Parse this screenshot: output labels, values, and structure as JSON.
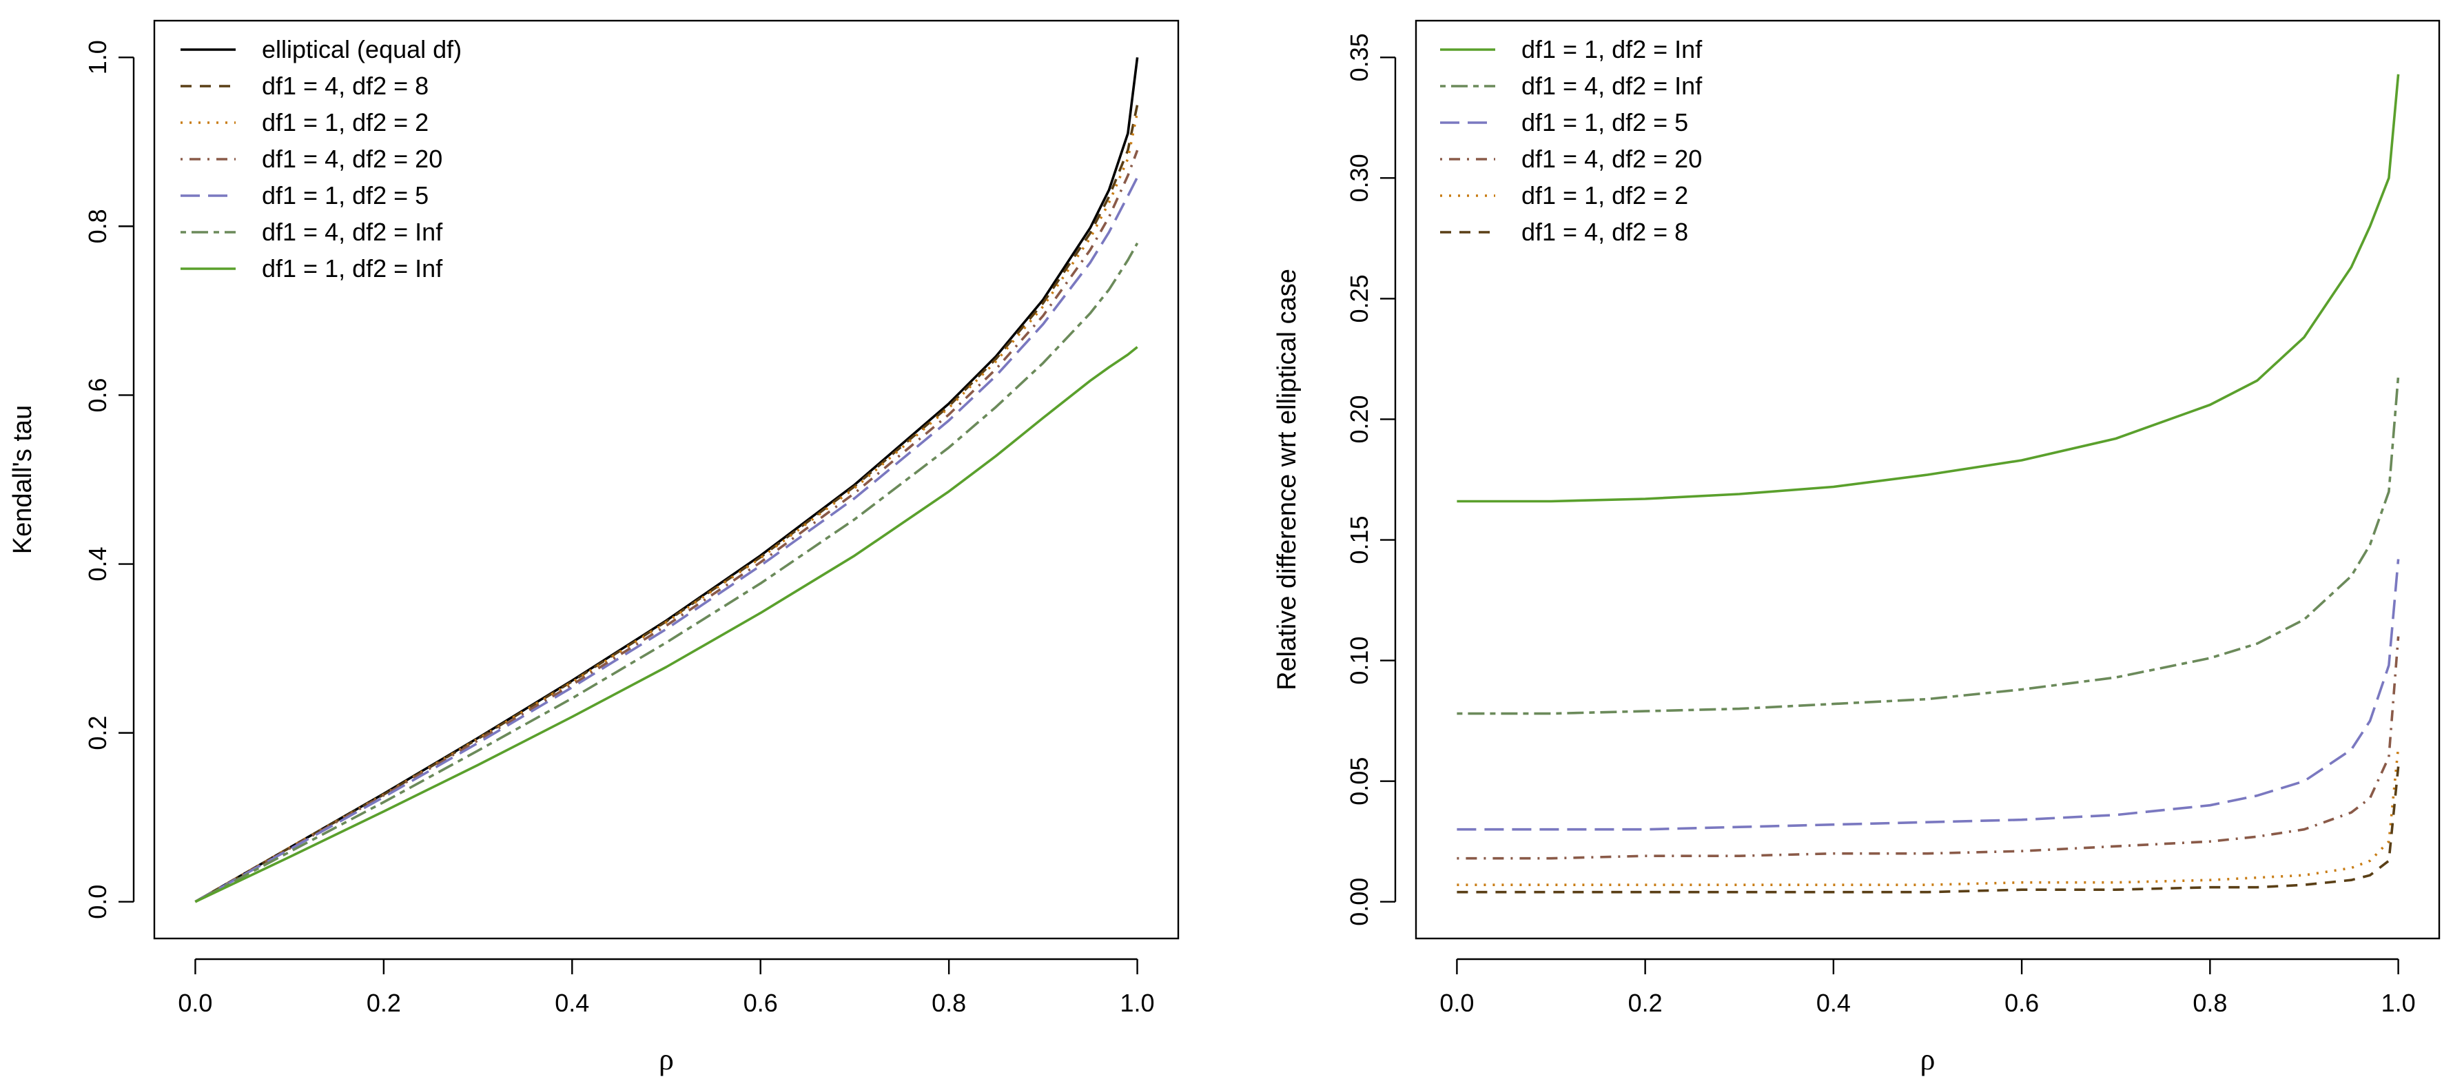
{
  "chart_data": [
    {
      "type": "line",
      "title": "",
      "xlabel": "ρ",
      "ylabel": "Kendall's tau",
      "xlim": [
        0,
        1
      ],
      "ylim": [
        0,
        1
      ],
      "xticks": [
        0.0,
        0.2,
        0.4,
        0.6,
        0.8,
        1.0
      ],
      "xtick_labels": [
        "0.0",
        "0.2",
        "0.4",
        "0.6",
        "0.8",
        "1.0"
      ],
      "yticks": [
        0.0,
        0.2,
        0.4,
        0.6,
        0.8,
        1.0
      ],
      "ytick_labels": [
        "0.0",
        "0.2",
        "0.4",
        "0.6",
        "0.8",
        "1.0"
      ],
      "legend_position": "top-left",
      "x": [
        0,
        0.1,
        0.2,
        0.3,
        0.4,
        0.5,
        0.6,
        0.7,
        0.8,
        0.85,
        0.9,
        0.95,
        0.97,
        0.99,
        1.0
      ],
      "series": [
        {
          "name": "elliptical (equal df)",
          "color": "#000000",
          "dash": "solid",
          "values": [
            0,
            0.064,
            0.128,
            0.194,
            0.262,
            0.333,
            0.41,
            0.494,
            0.59,
            0.646,
            0.713,
            0.798,
            0.843,
            0.91,
            1.0
          ]
        },
        {
          "name": "df1 = 4, df2 = 8",
          "color": "#5a3f16",
          "dash": "dashed",
          "values": [
            0,
            0.064,
            0.127,
            0.193,
            0.261,
            0.332,
            0.408,
            0.492,
            0.587,
            0.643,
            0.709,
            0.792,
            0.835,
            0.89,
            0.944
          ]
        },
        {
          "name": "df1 = 1, df2 = 2",
          "color": "#c87c14",
          "dash": "dotted",
          "values": [
            0,
            0.064,
            0.127,
            0.193,
            0.26,
            0.331,
            0.407,
            0.49,
            0.585,
            0.64,
            0.705,
            0.786,
            0.828,
            0.88,
            0.935
          ]
        },
        {
          "name": "df1 = 4, df2 = 20",
          "color": "#8a5a48",
          "dash": "dotdash",
          "values": [
            0,
            0.063,
            0.126,
            0.191,
            0.257,
            0.327,
            0.402,
            0.484,
            0.577,
            0.631,
            0.694,
            0.772,
            0.811,
            0.86,
            0.89
          ]
        },
        {
          "name": "df1 = 1, df2 = 5",
          "color": "#7a78c0",
          "dash": "longdash",
          "values": [
            0,
            0.062,
            0.124,
            0.188,
            0.254,
            0.323,
            0.398,
            0.478,
            0.57,
            0.623,
            0.684,
            0.757,
            0.793,
            0.836,
            0.858
          ]
        },
        {
          "name": "df1 = 4, df2 = Inf",
          "color": "#6b8a5a",
          "dash": "twodash",
          "values": [
            0,
            0.059,
            0.118,
            0.179,
            0.241,
            0.307,
            0.377,
            0.453,
            0.538,
            0.586,
            0.638,
            0.697,
            0.725,
            0.76,
            0.78
          ]
        },
        {
          "name": "df1 = 1, df2 = Inf",
          "color": "#5aa02c",
          "dash": "solid",
          "values": [
            0,
            0.053,
            0.107,
            0.162,
            0.219,
            0.278,
            0.342,
            0.41,
            0.486,
            0.528,
            0.573,
            0.617,
            0.633,
            0.648,
            0.657
          ]
        }
      ]
    },
    {
      "type": "line",
      "title": "",
      "xlabel": "ρ",
      "ylabel": "Relative difference wrt elliptical case",
      "xlim": [
        0,
        1
      ],
      "ylim": [
        0,
        0.35
      ],
      "xticks": [
        0.0,
        0.2,
        0.4,
        0.6,
        0.8,
        1.0
      ],
      "xtick_labels": [
        "0.0",
        "0.2",
        "0.4",
        "0.6",
        "0.8",
        "1.0"
      ],
      "yticks": [
        0.0,
        0.05,
        0.1,
        0.15,
        0.2,
        0.25,
        0.3,
        0.35
      ],
      "ytick_labels": [
        "0.00",
        "0.05",
        "0.10",
        "0.15",
        "0.20",
        "0.25",
        "0.30",
        "0.35"
      ],
      "legend_position": "top-left",
      "x": [
        0,
        0.1,
        0.2,
        0.3,
        0.4,
        0.5,
        0.6,
        0.7,
        0.8,
        0.85,
        0.9,
        0.95,
        0.97,
        0.99,
        1.0
      ],
      "series": [
        {
          "name": "df1 = 1, df2 = Inf",
          "color": "#5aa02c",
          "dash": "solid",
          "values": [
            0.166,
            0.166,
            0.167,
            0.169,
            0.172,
            0.177,
            0.183,
            0.192,
            0.206,
            0.216,
            0.234,
            0.263,
            0.28,
            0.3,
            0.343
          ]
        },
        {
          "name": "df1 = 4, df2 = Inf",
          "color": "#6b8a5a",
          "dash": "twodash",
          "values": [
            0.078,
            0.078,
            0.079,
            0.08,
            0.082,
            0.084,
            0.088,
            0.093,
            0.101,
            0.107,
            0.117,
            0.135,
            0.148,
            0.17,
            0.218
          ]
        },
        {
          "name": "df1 = 1, df2 = 5",
          "color": "#7a78c0",
          "dash": "longdash",
          "values": [
            0.03,
            0.03,
            0.03,
            0.031,
            0.032,
            0.033,
            0.034,
            0.036,
            0.04,
            0.044,
            0.05,
            0.063,
            0.075,
            0.098,
            0.142
          ]
        },
        {
          "name": "df1 = 4, df2 = 20",
          "color": "#8a5a48",
          "dash": "dotdash",
          "values": [
            0.018,
            0.018,
            0.019,
            0.019,
            0.02,
            0.02,
            0.021,
            0.023,
            0.025,
            0.027,
            0.03,
            0.037,
            0.043,
            0.06,
            0.11
          ]
        },
        {
          "name": "df1 = 1, df2 = 2",
          "color": "#c87c14",
          "dash": "dotted",
          "values": [
            0.007,
            0.007,
            0.007,
            0.007,
            0.007,
            0.007,
            0.008,
            0.008,
            0.009,
            0.01,
            0.011,
            0.014,
            0.017,
            0.025,
            0.064
          ]
        },
        {
          "name": "df1 = 4, df2 = 8",
          "color": "#5a3f16",
          "dash": "dashed",
          "values": [
            0.004,
            0.004,
            0.004,
            0.004,
            0.004,
            0.004,
            0.005,
            0.005,
            0.006,
            0.006,
            0.007,
            0.009,
            0.011,
            0.017,
            0.056
          ]
        }
      ]
    }
  ]
}
